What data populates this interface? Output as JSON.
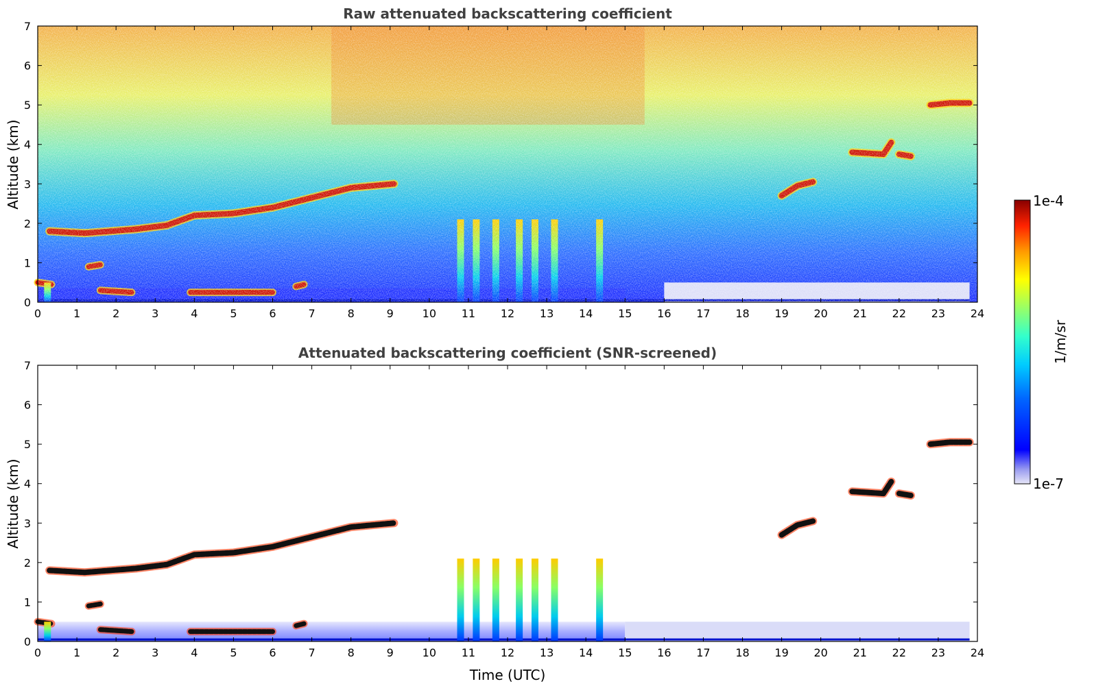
{
  "chart_data": [
    {
      "type": "heatmap",
      "title": "Raw attenuated backscattering coefficient",
      "xlabel": "",
      "ylabel": "Altitude (km)",
      "xlim": [
        0,
        24
      ],
      "ylim": [
        0,
        7
      ],
      "x_ticks": [
        "0",
        "1",
        "2",
        "3",
        "4",
        "5",
        "6",
        "7",
        "8",
        "9",
        "10",
        "11",
        "12",
        "13",
        "14",
        "15",
        "16",
        "17",
        "18",
        "19",
        "20",
        "21",
        "22",
        "23",
        "24"
      ],
      "y_ticks": [
        "0",
        "1",
        "2",
        "3",
        "4",
        "5",
        "6",
        "7"
      ],
      "layers": [
        {
          "kind": "cloud",
          "points": [
            [
              0.3,
              1.8
            ],
            [
              1.2,
              1.75
            ],
            [
              2.5,
              1.85
            ],
            [
              3.3,
              1.95
            ],
            [
              4.0,
              2.2
            ],
            [
              5.0,
              2.25
            ],
            [
              6.0,
              2.4
            ],
            [
              7.0,
              2.65
            ],
            [
              8.0,
              2.9
            ],
            [
              9.1,
              3.0
            ]
          ]
        },
        {
          "kind": "cloud",
          "points": [
            [
              19.0,
              2.7
            ],
            [
              19.4,
              2.95
            ],
            [
              19.8,
              3.05
            ]
          ]
        },
        {
          "kind": "cloud",
          "points": [
            [
              20.8,
              3.8
            ],
            [
              21.6,
              3.75
            ],
            [
              21.8,
              4.05
            ]
          ]
        },
        {
          "kind": "cloud",
          "points": [
            [
              22.0,
              3.75
            ],
            [
              22.3,
              3.7
            ]
          ]
        },
        {
          "kind": "cloud",
          "points": [
            [
              22.8,
              5.0
            ],
            [
              23.3,
              5.05
            ],
            [
              23.8,
              5.05
            ]
          ]
        },
        {
          "kind": "low",
          "points": [
            [
              0.0,
              0.5
            ],
            [
              0.35,
              0.45
            ]
          ]
        },
        {
          "kind": "low",
          "points": [
            [
              1.6,
              0.3
            ],
            [
              2.4,
              0.25
            ]
          ]
        },
        {
          "kind": "low",
          "points": [
            [
              3.9,
              0.25
            ],
            [
              6.0,
              0.25
            ]
          ]
        },
        {
          "kind": "low",
          "points": [
            [
              6.6,
              0.4
            ],
            [
              6.8,
              0.45
            ]
          ]
        },
        {
          "kind": "low",
          "points": [
            [
              1.3,
              0.9
            ],
            [
              1.6,
              0.95
            ]
          ]
        }
      ],
      "columns": [
        0.25,
        10.8,
        11.2,
        11.7,
        12.3,
        12.7,
        13.2,
        14.35
      ],
      "grid": false
    },
    {
      "type": "heatmap",
      "title": "Attenuated backscattering coefficient (SNR-screened)",
      "xlabel": "Time (UTC)",
      "ylabel": "Altitude (km)",
      "xlim": [
        0,
        24
      ],
      "ylim": [
        0,
        7
      ],
      "x_ticks": [
        "0",
        "1",
        "2",
        "3",
        "4",
        "5",
        "6",
        "7",
        "8",
        "9",
        "10",
        "11",
        "12",
        "13",
        "14",
        "15",
        "16",
        "17",
        "18",
        "19",
        "20",
        "21",
        "22",
        "23",
        "24"
      ],
      "y_ticks": [
        "0",
        "1",
        "2",
        "3",
        "4",
        "5",
        "6",
        "7"
      ],
      "grid": false
    }
  ],
  "colorbar": {
    "max_label": "1e-4",
    "min_label": "1e-7",
    "label": "1/m/sr",
    "vmin": 1e-07,
    "vmax": 0.0001,
    "colormap": "jet"
  }
}
